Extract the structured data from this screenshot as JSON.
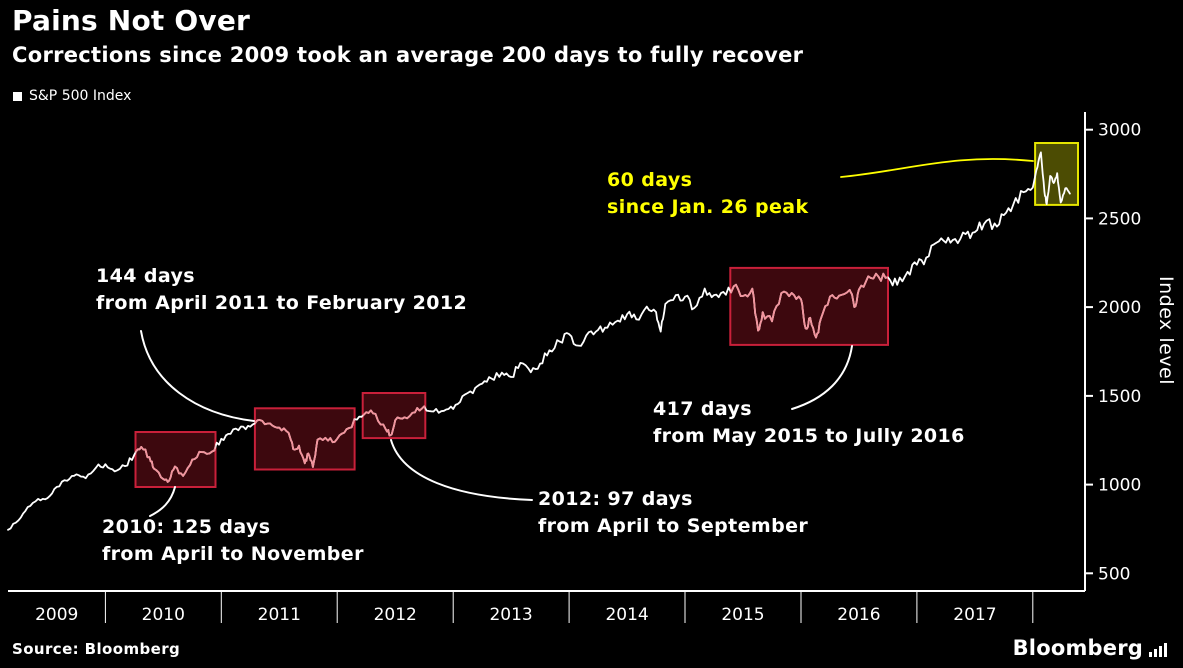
{
  "header": {
    "title": "Pains Not Over",
    "subtitle": "Corrections since 2009 took an average 200 days to fully recover",
    "legend_label": "S&P 500 Index"
  },
  "chart_data": {
    "type": "line",
    "title": "Pains Not Over",
    "subtitle": "Corrections since 2009 took an average 200 days to fully recover",
    "series_name": "S&P 500 Index",
    "ylabel": "Index level",
    "line_color": "#ffffff",
    "background_color": "#000000",
    "x_range": [
      2009.16,
      2018.45
    ],
    "y_range": [
      400,
      3100
    ],
    "y_ticks": [
      500,
      1000,
      1500,
      2000,
      2500,
      3000
    ],
    "x_tick_years": [
      2009,
      2010,
      2011,
      2012,
      2013,
      2014,
      2015,
      2016,
      2017
    ],
    "points": [
      [
        2009.16,
        745
      ],
      [
        2009.25,
        798
      ],
      [
        2009.33,
        873
      ],
      [
        2009.42,
        919
      ],
      [
        2009.5,
        923
      ],
      [
        2009.58,
        987
      ],
      [
        2009.67,
        1021
      ],
      [
        2009.75,
        1057
      ],
      [
        2009.83,
        1036
      ],
      [
        2009.92,
        1096
      ],
      [
        2010.0,
        1115
      ],
      [
        2010.08,
        1074
      ],
      [
        2010.17,
        1104
      ],
      [
        2010.25,
        1169
      ],
      [
        2010.31,
        1212
      ],
      [
        2010.38,
        1155
      ],
      [
        2010.42,
        1089
      ],
      [
        2010.5,
        1031
      ],
      [
        2010.55,
        1022
      ],
      [
        2010.6,
        1102
      ],
      [
        2010.67,
        1049
      ],
      [
        2010.75,
        1141
      ],
      [
        2010.83,
        1183
      ],
      [
        2010.92,
        1186
      ],
      [
        2011.0,
        1258
      ],
      [
        2011.08,
        1286
      ],
      [
        2011.17,
        1327
      ],
      [
        2011.25,
        1326
      ],
      [
        2011.33,
        1364
      ],
      [
        2011.42,
        1345
      ],
      [
        2011.5,
        1321
      ],
      [
        2011.58,
        1292
      ],
      [
        2011.62,
        1200
      ],
      [
        2011.67,
        1219
      ],
      [
        2011.72,
        1120
      ],
      [
        2011.75,
        1175
      ],
      [
        2011.79,
        1099
      ],
      [
        2011.83,
        1253
      ],
      [
        2011.92,
        1247
      ],
      [
        2012.0,
        1258
      ],
      [
        2012.08,
        1312
      ],
      [
        2012.17,
        1366
      ],
      [
        2012.25,
        1408
      ],
      [
        2012.33,
        1398
      ],
      [
        2012.42,
        1310
      ],
      [
        2012.46,
        1278
      ],
      [
        2012.5,
        1362
      ],
      [
        2012.58,
        1379
      ],
      [
        2012.67,
        1407
      ],
      [
        2012.75,
        1441
      ],
      [
        2012.83,
        1412
      ],
      [
        2012.92,
        1416
      ],
      [
        2013.0,
        1426
      ],
      [
        2013.08,
        1498
      ],
      [
        2013.17,
        1515
      ],
      [
        2013.25,
        1569
      ],
      [
        2013.33,
        1598
      ],
      [
        2013.42,
        1631
      ],
      [
        2013.5,
        1606
      ],
      [
        2013.58,
        1686
      ],
      [
        2013.67,
        1633
      ],
      [
        2013.75,
        1682
      ],
      [
        2013.83,
        1757
      ],
      [
        2013.92,
        1806
      ],
      [
        2014.0,
        1848
      ],
      [
        2014.08,
        1783
      ],
      [
        2014.17,
        1859
      ],
      [
        2014.25,
        1872
      ],
      [
        2014.33,
        1884
      ],
      [
        2014.42,
        1924
      ],
      [
        2014.5,
        1960
      ],
      [
        2014.58,
        1931
      ],
      [
        2014.67,
        2003
      ],
      [
        2014.75,
        1972
      ],
      [
        2014.79,
        1862
      ],
      [
        2014.83,
        2018
      ],
      [
        2014.92,
        2068
      ],
      [
        2015.0,
        2059
      ],
      [
        2015.08,
        1995
      ],
      [
        2015.17,
        2105
      ],
      [
        2015.25,
        2068
      ],
      [
        2015.33,
        2086
      ],
      [
        2015.42,
        2117
      ],
      [
        2015.5,
        2063
      ],
      [
        2015.58,
        2104
      ],
      [
        2015.63,
        1868
      ],
      [
        2015.67,
        1972
      ],
      [
        2015.75,
        1920
      ],
      [
        2015.83,
        2079
      ],
      [
        2015.92,
        2080
      ],
      [
        2016.0,
        2044
      ],
      [
        2016.04,
        1880
      ],
      [
        2016.08,
        1940
      ],
      [
        2016.13,
        1829
      ],
      [
        2016.17,
        1932
      ],
      [
        2016.25,
        2060
      ],
      [
        2016.33,
        2065
      ],
      [
        2016.42,
        2097
      ],
      [
        2016.46,
        2001
      ],
      [
        2016.5,
        2099
      ],
      [
        2016.58,
        2174
      ],
      [
        2016.67,
        2171
      ],
      [
        2016.75,
        2168
      ],
      [
        2016.83,
        2126
      ],
      [
        2016.92,
        2199
      ],
      [
        2017.0,
        2239
      ],
      [
        2017.08,
        2279
      ],
      [
        2017.17,
        2364
      ],
      [
        2017.25,
        2363
      ],
      [
        2017.33,
        2384
      ],
      [
        2017.42,
        2412
      ],
      [
        2017.5,
        2423
      ],
      [
        2017.58,
        2470
      ],
      [
        2017.67,
        2472
      ],
      [
        2017.75,
        2519
      ],
      [
        2017.83,
        2575
      ],
      [
        2017.92,
        2648
      ],
      [
        2018.0,
        2674
      ],
      [
        2018.04,
        2790
      ],
      [
        2018.07,
        2872
      ],
      [
        2018.1,
        2650
      ],
      [
        2018.12,
        2581
      ],
      [
        2018.15,
        2740
      ],
      [
        2018.18,
        2700
      ],
      [
        2018.21,
        2755
      ],
      [
        2018.24,
        2590
      ],
      [
        2018.28,
        2670
      ],
      [
        2018.32,
        2640
      ]
    ],
    "highlight_boxes": [
      {
        "name": "correction-2010",
        "t0": 2010.26,
        "t1": 2010.95,
        "v0": 986,
        "v1": 1296,
        "fill": "rgba(190,25,45,0.32)",
        "stroke": "#c9203a",
        "line_color": "#f2939c"
      },
      {
        "name": "correction-2011-2012",
        "t0": 2011.29,
        "t1": 2012.15,
        "v0": 1085,
        "v1": 1430,
        "fill": "rgba(190,25,45,0.32)",
        "stroke": "#c9203a",
        "line_color": "#f2939c"
      },
      {
        "name": "correction-2012",
        "t0": 2012.22,
        "t1": 2012.76,
        "v0": 1262,
        "v1": 1516,
        "fill": "rgba(190,25,45,0.32)",
        "stroke": "#c9203a",
        "line_color": "#f2939c"
      },
      {
        "name": "correction-2015-2016",
        "t0": 2015.39,
        "t1": 2016.75,
        "v0": 1787,
        "v1": 2221,
        "fill": "rgba(190,25,45,0.32)",
        "stroke": "#c9203a",
        "line_color": "#f2939c"
      },
      {
        "name": "correction-2018",
        "t0": 2018.02,
        "t1": 2018.39,
        "v0": 2576,
        "v1": 2925,
        "fill": "rgba(230,230,10,0.33)",
        "stroke": "#e6e600",
        "line_color": "#ffffff"
      }
    ],
    "annotations": [
      {
        "line1": "144 days",
        "line2": "from April 2011 to February 2012",
        "color": "#ffffff"
      },
      {
        "line1": "2010: 125 days",
        "line2": "from April to November",
        "color": "#ffffff"
      },
      {
        "line1": "2012: 97 days",
        "line2": "from April to September",
        "color": "#ffffff"
      },
      {
        "line1": "417 days",
        "line2": "from May 2015 to Jully 2016",
        "color": "#ffffff"
      },
      {
        "line1": "60 days",
        "line2": "since Jan. 26 peak",
        "color": "#ffff00"
      }
    ]
  },
  "footer": {
    "source": "Source: Bloomberg",
    "brand": "Bloomberg"
  }
}
